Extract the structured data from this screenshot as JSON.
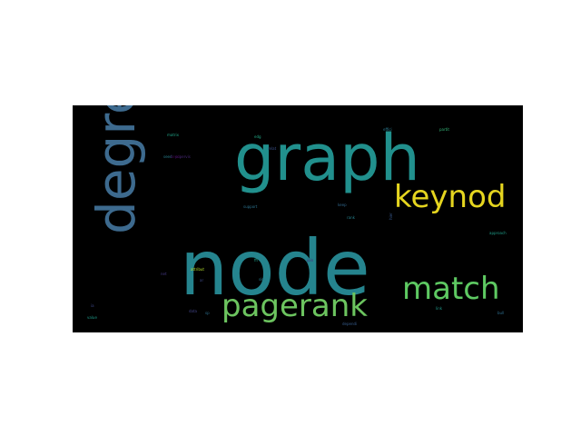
{
  "chart_data": {
    "type": "wordcloud",
    "background": "#000000",
    "words": [
      {
        "text": "node",
        "weight": 1.0,
        "color": "#25848e"
      },
      {
        "text": "graph",
        "weight": 0.78,
        "color": "#21908d"
      },
      {
        "text": "degre",
        "weight": 0.62,
        "color": "#3d6a8e"
      },
      {
        "text": "pagerank",
        "weight": 0.38,
        "color": "#6cc45f"
      },
      {
        "text": "match",
        "weight": 0.35,
        "color": "#5ec962"
      },
      {
        "text": "keynod",
        "weight": 0.32,
        "color": "#e5d51f"
      },
      {
        "text": "effici",
        "weight": 0.04,
        "color": "#2a788e"
      },
      {
        "text": "partit",
        "weight": 0.04,
        "color": "#35b779"
      },
      {
        "text": "matrix",
        "weight": 0.03,
        "color": "#20a386"
      },
      {
        "text": "relat",
        "weight": 0.03,
        "color": "#3b528b"
      },
      {
        "text": "edg",
        "weight": 0.03,
        "color": "#22a884"
      },
      {
        "text": "supervis",
        "weight": 0.03,
        "color": "#482878"
      },
      {
        "text": "support",
        "weight": 0.03,
        "color": "#2c728e"
      },
      {
        "text": "keep",
        "weight": 0.03,
        "color": "#31688e"
      },
      {
        "text": "rank",
        "weight": 0.03,
        "color": "#26828e"
      },
      {
        "text": "approach",
        "weight": 0.03,
        "color": "#1f9e89"
      },
      {
        "text": "join",
        "weight": 0.03,
        "color": "#472d7b"
      },
      {
        "text": "attribut",
        "weight": 0.03,
        "color": "#b5de2b"
      },
      {
        "text": "ffi",
        "weight": 0.03,
        "color": "#1fa188"
      },
      {
        "text": "net",
        "weight": 0.03,
        "color": "#443983"
      },
      {
        "text": "ar",
        "weight": 0.03,
        "color": "#3e4a89"
      },
      {
        "text": "sim",
        "weight": 0.03,
        "color": "#287d8e"
      },
      {
        "text": "data",
        "weight": 0.03,
        "color": "#414487"
      },
      {
        "text": "sp",
        "weight": 0.03,
        "color": "#2d708e"
      },
      {
        "text": "dependi",
        "weight": 0.03,
        "color": "#365c8d"
      },
      {
        "text": "value",
        "weight": 0.03,
        "color": "#1e9b8a"
      },
      {
        "text": "ia",
        "weight": 0.03,
        "color": "#3f4889"
      },
      {
        "text": "seed",
        "weight": 0.03,
        "color": "#27808e"
      },
      {
        "text": "keyd",
        "weight": 0.03,
        "color": "#440154"
      },
      {
        "text": "hier",
        "weight": 0.03,
        "color": "#38588c"
      },
      {
        "text": "bull",
        "weight": 0.03,
        "color": "#2e6e8e"
      },
      {
        "text": "link",
        "weight": 0.03,
        "color": "#1f998a"
      }
    ]
  }
}
